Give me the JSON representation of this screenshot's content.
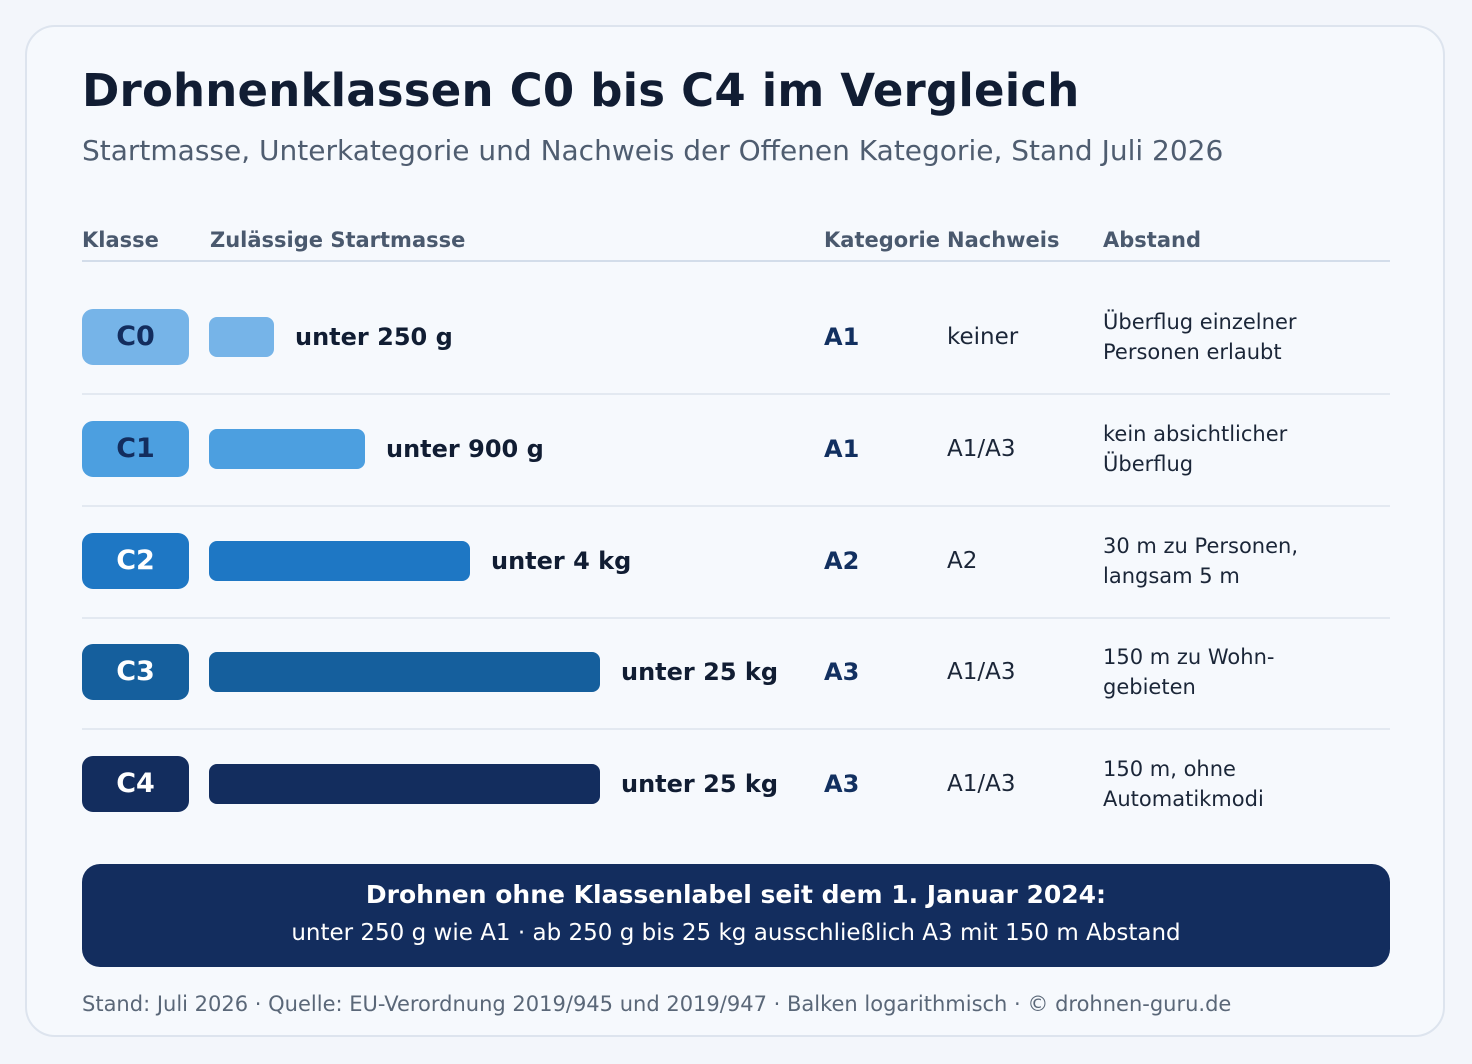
{
  "title": "Drohnenklassen C0 bis C4 im Vergleich",
  "subtitle": "Startmasse, Unterkategorie und Nachweis der Offenen Kategorie, Stand Juli 2026",
  "headers": {
    "klasse": "Klasse",
    "masse": "Zulässige Startmasse",
    "kategorie": "Kategorie",
    "nachweis": "Nachweis",
    "abstand": "Abstand"
  },
  "chart_data": {
    "type": "bar",
    "scale": "log",
    "categories": [
      "C0",
      "C1",
      "C2",
      "C3",
      "C4"
    ],
    "values_g": [
      250,
      900,
      4000,
      25000,
      25000
    ],
    "value_labels": [
      "unter 250 g",
      "unter 900 g",
      "unter 4 kg",
      "unter 25 kg",
      "unter 25 kg"
    ]
  },
  "rows": [
    {
      "klasse": "C0",
      "masse": "unter 250 g",
      "kategorie": "A1",
      "nachweis": "keiner",
      "abstand": [
        "Überflug einzelner",
        "Personen erlaubt"
      ],
      "color": "#76b4e8",
      "text_color": "#132d5e"
    },
    {
      "klasse": "C1",
      "masse": "unter 900 g",
      "kategorie": "A1",
      "nachweis": "A1/A3",
      "abstand": [
        "kein absichtlicher",
        "Überflug"
      ],
      "color": "#4c9fe0",
      "text_color": "#132d5e"
    },
    {
      "klasse": "C2",
      "masse": "unter 4 kg",
      "kategorie": "A2",
      "nachweis": "A2",
      "abstand": [
        "30 m zu Personen,",
        "langsam 5 m"
      ],
      "color": "#1e77c4",
      "text_color": "#ffffff"
    },
    {
      "klasse": "C3",
      "masse": "unter 25 kg",
      "kategorie": "A3",
      "nachweis": "A1/A3",
      "abstand": [
        "150 m zu Wohn-",
        "gebieten"
      ],
      "color": "#155f9d",
      "text_color": "#ffffff"
    },
    {
      "klasse": "C4",
      "masse": "unter 25 kg",
      "kategorie": "A3",
      "nachweis": "A1/A3",
      "abstand": [
        "150 m, ohne",
        "Automatikmodi"
      ],
      "color": "#132d5e",
      "text_color": "#ffffff"
    }
  ],
  "banner": {
    "title": "Drohnen ohne Klassenlabel seit dem 1. Januar 2024:",
    "text": "unter 250 g wie A1 · ab 250 g bis 25 kg ausschließlich A3 mit 150 m Abstand"
  },
  "footer": "Stand: Juli 2026 · Quelle: EU-Verordnung 2019/945 und 2019/947 · Balken logarithmisch · © drohnen-guru.de"
}
